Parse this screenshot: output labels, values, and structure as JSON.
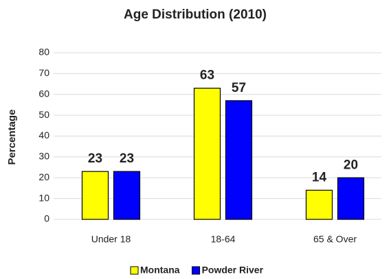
{
  "chart_data": {
    "type": "bar",
    "title": "Age Distribution (2010)",
    "y_label": "Percentage",
    "categories": [
      "Under 18",
      "18-64",
      "65 & Over"
    ],
    "series": [
      {
        "name": "Montana",
        "color": "#ffff00",
        "values": [
          23,
          63,
          14
        ]
      },
      {
        "name": "Powder River",
        "color": "#0000ff",
        "values": [
          23,
          57,
          20
        ]
      }
    ],
    "ylim": [
      0,
      80
    ],
    "yticks": [
      0,
      10,
      20,
      30,
      40,
      50,
      60,
      70,
      80
    ],
    "grid": true,
    "legend": "bottom"
  }
}
